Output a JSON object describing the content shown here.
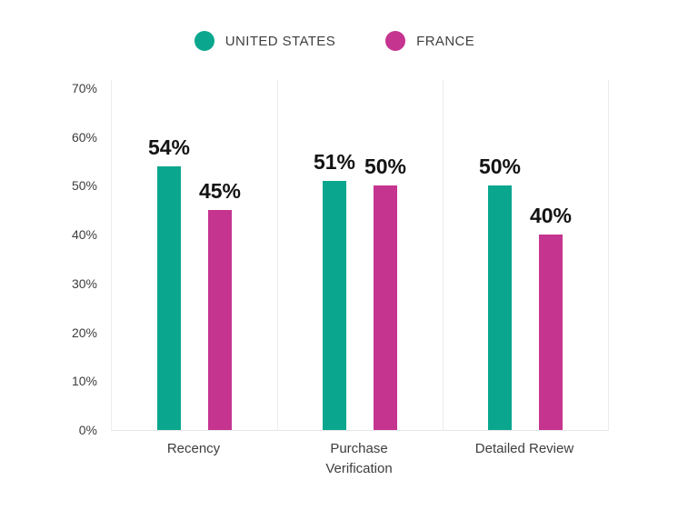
{
  "chart_data": {
    "type": "bar",
    "title": "",
    "categories": [
      "Recency",
      "Purchase Verification",
      "Detailed Review"
    ],
    "series": [
      {
        "name": "UNITED STATES",
        "color": "#0aa78e",
        "values": [
          54,
          51,
          50
        ],
        "labels": [
          "54%",
          "51%",
          "50%"
        ]
      },
      {
        "name": "FRANCE",
        "color": "#c5348f",
        "values": [
          45,
          50,
          40
        ],
        "labels": [
          "45%",
          "50%",
          "40%"
        ]
      }
    ],
    "xlabel": "",
    "ylabel": "",
    "ylim": [
      0,
      70
    ],
    "yticks": [
      0,
      10,
      20,
      30,
      40,
      50,
      60,
      70
    ],
    "ytick_labels": [
      "0%",
      "10%",
      "20%",
      "30%",
      "40%",
      "50%",
      "60%",
      "70%"
    ],
    "value_suffix": "%",
    "grid": "vertical-category-separators-only",
    "legend_position": "top-center"
  },
  "legend": {
    "items": [
      {
        "label": "UNITED STATES",
        "color": "#0aa78e"
      },
      {
        "label": "FRANCE",
        "color": "#c5348f"
      }
    ]
  },
  "colors": {
    "united_states": "#0aa78e",
    "france": "#c5348f",
    "axis_line": "#ececec",
    "tick_text": "#3d3d3d",
    "value_label": "#131313",
    "background": "#ffffff"
  }
}
